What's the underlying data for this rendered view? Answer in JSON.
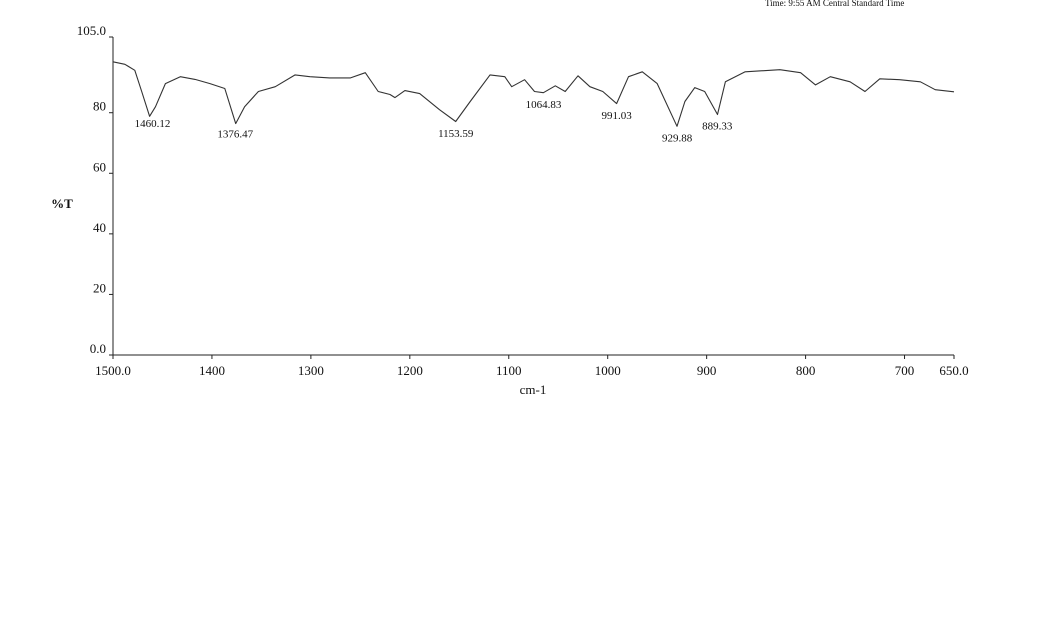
{
  "chart_data": {
    "type": "line",
    "header": "Time: 9:55 AM Central Standard Time",
    "xlabel": "cm-1",
    "ylabel": "%T",
    "x": [
      1500,
      1488,
      1478,
      1471,
      1463,
      1457,
      1447,
      1432,
      1417,
      1402,
      1387,
      1376,
      1367,
      1353,
      1336,
      1316,
      1301,
      1281,
      1260,
      1245,
      1232,
      1220,
      1215,
      1205,
      1190,
      1170,
      1153.6,
      1139,
      1119,
      1104,
      1097,
      1084,
      1074,
      1065,
      1053,
      1043,
      1030,
      1018,
      1005,
      991,
      979,
      965,
      950,
      930,
      922,
      912,
      902,
      889,
      881,
      861,
      826,
      805,
      790,
      775,
      755,
      740,
      725,
      705,
      684,
      669,
      650
    ],
    "values": [
      96.8,
      96,
      94,
      87,
      78.8,
      82,
      89.6,
      91.9,
      91,
      89.6,
      88,
      76.4,
      82,
      87,
      88.6,
      92.5,
      91.9,
      91.5,
      91.5,
      93.2,
      87,
      86,
      85,
      87.3,
      86.3,
      81,
      77.1,
      83.7,
      92.5,
      91.9,
      88.6,
      90.9,
      87,
      86.6,
      88.9,
      87,
      92.2,
      88.6,
      87,
      83,
      91.9,
      93.5,
      89.6,
      75.5,
      83.7,
      88.3,
      87,
      79.4,
      90.2,
      93.5,
      94.2,
      93.2,
      89.2,
      91.9,
      90.2,
      87,
      91.2,
      90.9,
      90.2,
      87.6,
      86.9
    ],
    "color": "#333333",
    "peaks": [
      1460.12,
      1376.47,
      1153.59,
      1064.83,
      991.03,
      929.88,
      889.33
    ],
    "xlim": [
      1500,
      650
    ],
    "xticks": [
      {
        "value": 1500,
        "label": "1500.0"
      },
      1400,
      1300,
      1200,
      1100,
      1000,
      900,
      800,
      700,
      {
        "value": 650,
        "label": "650.0"
      }
    ],
    "ylim": [
      0,
      105
    ],
    "yticks": [
      {
        "value": 0,
        "label": "0.0"
      },
      20,
      40,
      60,
      80,
      {
        "value": 105,
        "label": "105.0"
      }
    ]
  }
}
